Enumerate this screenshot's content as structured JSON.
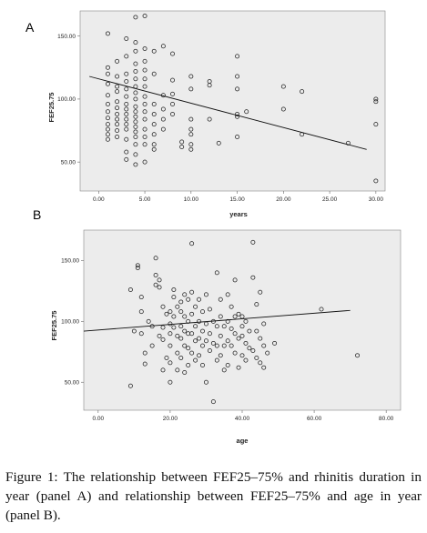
{
  "chart_data": [
    {
      "type": "scatter",
      "panel_label": "A",
      "xlabel": "years",
      "ylabel": "FEF25.75",
      "x_ticks": [
        "0.00",
        "5.00",
        "10.00",
        "15.00",
        "20.00",
        "25.00",
        "30.00"
      ],
      "y_ticks": [
        "50.00",
        "100.00",
        "150.00"
      ],
      "xlim": [
        -2,
        31
      ],
      "ylim": [
        27,
        170
      ],
      "background": "#ececec",
      "fit_line": [
        [
          -1,
          118
        ],
        [
          29,
          60
        ]
      ],
      "points": [
        [
          1,
          152
        ],
        [
          1,
          125
        ],
        [
          1,
          120
        ],
        [
          1,
          112
        ],
        [
          1,
          103
        ],
        [
          1,
          96
        ],
        [
          1,
          90
        ],
        [
          1,
          85
        ],
        [
          1,
          80
        ],
        [
          1,
          76
        ],
        [
          1,
          72
        ],
        [
          1,
          68
        ],
        [
          2,
          130
        ],
        [
          2,
          118
        ],
        [
          2,
          110
        ],
        [
          2,
          106
        ],
        [
          2,
          98
        ],
        [
          2,
          93
        ],
        [
          2,
          88
        ],
        [
          2,
          84
        ],
        [
          2,
          80
        ],
        [
          2,
          75
        ],
        [
          2,
          70
        ],
        [
          3,
          148
        ],
        [
          3,
          134
        ],
        [
          3,
          120
        ],
        [
          3,
          114
        ],
        [
          3,
          108
        ],
        [
          3,
          102
        ],
        [
          3,
          96
        ],
        [
          3,
          92
        ],
        [
          3,
          88
        ],
        [
          3,
          84
        ],
        [
          3,
          80
        ],
        [
          3,
          76
        ],
        [
          3,
          68
        ],
        [
          3,
          58
        ],
        [
          3,
          52
        ],
        [
          4,
          165
        ],
        [
          4,
          145
        ],
        [
          4,
          138
        ],
        [
          4,
          128
        ],
        [
          4,
          122
        ],
        [
          4,
          116
        ],
        [
          4,
          110
        ],
        [
          4,
          105
        ],
        [
          4,
          100
        ],
        [
          4,
          94
        ],
        [
          4,
          90
        ],
        [
          4,
          86
        ],
        [
          4,
          82
        ],
        [
          4,
          78
        ],
        [
          4,
          74
        ],
        [
          4,
          70
        ],
        [
          4,
          64
        ],
        [
          4,
          56
        ],
        [
          4,
          48
        ],
        [
          5,
          166
        ],
        [
          5,
          140
        ],
        [
          5,
          130
        ],
        [
          5,
          123
        ],
        [
          5,
          116
        ],
        [
          5,
          110
        ],
        [
          5,
          102
        ],
        [
          5,
          96
        ],
        [
          5,
          90
        ],
        [
          5,
          84
        ],
        [
          5,
          76
        ],
        [
          5,
          70
        ],
        [
          5,
          64
        ],
        [
          5,
          50
        ],
        [
          6,
          138
        ],
        [
          6,
          120
        ],
        [
          6,
          96
        ],
        [
          6,
          88
        ],
        [
          6,
          80
        ],
        [
          6,
          72
        ],
        [
          6,
          64
        ],
        [
          6,
          60
        ],
        [
          7,
          142
        ],
        [
          7,
          103
        ],
        [
          7,
          92
        ],
        [
          7,
          84
        ],
        [
          7,
          76
        ],
        [
          8,
          136
        ],
        [
          8,
          115
        ],
        [
          8,
          104
        ],
        [
          8,
          96
        ],
        [
          8,
          88
        ],
        [
          9,
          66
        ],
        [
          9,
          62
        ],
        [
          10,
          118
        ],
        [
          10,
          108
        ],
        [
          10,
          84
        ],
        [
          10,
          76
        ],
        [
          10,
          72
        ],
        [
          10,
          64
        ],
        [
          10,
          60
        ],
        [
          12,
          114
        ],
        [
          12,
          111
        ],
        [
          12,
          84
        ],
        [
          13,
          65
        ],
        [
          15,
          134
        ],
        [
          15,
          118
        ],
        [
          15,
          108
        ],
        [
          15,
          88
        ],
        [
          15,
          86
        ],
        [
          15,
          70
        ],
        [
          16,
          90
        ],
        [
          20,
          110
        ],
        [
          20,
          92
        ],
        [
          22,
          106
        ],
        [
          22,
          72
        ],
        [
          27,
          65
        ],
        [
          30,
          100
        ],
        [
          30,
          98
        ],
        [
          30,
          80
        ],
        [
          30,
          35
        ]
      ]
    },
    {
      "type": "scatter",
      "panel_label": "B",
      "xlabel": "age",
      "ylabel": "FEF25.75",
      "x_ticks": [
        "0.00",
        "20.00",
        "40.00",
        "60.00",
        "80.00"
      ],
      "y_ticks": [
        "50.00",
        "100.00",
        "150.00"
      ],
      "xlim": [
        -4,
        84
      ],
      "ylim": [
        27,
        175
      ],
      "background": "#ececec",
      "fit_line": [
        [
          -4,
          92
        ],
        [
          70,
          109
        ]
      ],
      "points": [
        [
          9,
          126
        ],
        [
          9,
          47
        ],
        [
          10,
          92
        ],
        [
          11,
          146
        ],
        [
          11,
          144
        ],
        [
          12,
          120
        ],
        [
          12,
          108
        ],
        [
          12,
          90
        ],
        [
          13,
          74
        ],
        [
          13,
          65
        ],
        [
          14,
          100
        ],
        [
          15,
          96
        ],
        [
          15,
          80
        ],
        [
          16,
          152
        ],
        [
          16,
          138
        ],
        [
          16,
          130
        ],
        [
          17,
          134
        ],
        [
          17,
          128
        ],
        [
          17,
          88
        ],
        [
          18,
          112
        ],
        [
          18,
          95
        ],
        [
          18,
          85
        ],
        [
          18,
          60
        ],
        [
          19,
          106
        ],
        [
          19,
          70
        ],
        [
          20,
          108
        ],
        [
          20,
          98
        ],
        [
          20,
          90
        ],
        [
          20,
          80
        ],
        [
          20,
          66
        ],
        [
          20,
          50
        ],
        [
          21,
          126
        ],
        [
          21,
          120
        ],
        [
          21,
          104
        ],
        [
          21,
          95
        ],
        [
          22,
          112
        ],
        [
          22,
          88
        ],
        [
          22,
          74
        ],
        [
          22,
          60
        ],
        [
          23,
          116
        ],
        [
          23,
          108
        ],
        [
          23,
          96
        ],
        [
          23,
          86
        ],
        [
          23,
          70
        ],
        [
          24,
          122
        ],
        [
          24,
          104
        ],
        [
          24,
          92
        ],
        [
          24,
          80
        ],
        [
          24,
          58
        ],
        [
          25,
          118
        ],
        [
          25,
          100
        ],
        [
          25,
          90
        ],
        [
          25,
          78
        ],
        [
          25,
          64
        ],
        [
          26,
          164
        ],
        [
          26,
          124
        ],
        [
          26,
          106
        ],
        [
          26,
          90
        ],
        [
          26,
          74
        ],
        [
          27,
          112
        ],
        [
          27,
          96
        ],
        [
          27,
          84
        ],
        [
          27,
          68
        ],
        [
          28,
          118
        ],
        [
          28,
          100
        ],
        [
          28,
          86
        ],
        [
          28,
          72
        ],
        [
          29,
          108
        ],
        [
          29,
          92
        ],
        [
          29,
          80
        ],
        [
          29,
          64
        ],
        [
          30,
          122
        ],
        [
          30,
          98
        ],
        [
          30,
          84
        ],
        [
          30,
          50
        ],
        [
          31,
          110
        ],
        [
          31,
          90
        ],
        [
          31,
          76
        ],
        [
          32,
          100
        ],
        [
          32,
          82
        ],
        [
          32,
          34
        ],
        [
          33,
          140
        ],
        [
          33,
          96
        ],
        [
          33,
          80
        ],
        [
          33,
          68
        ],
        [
          34,
          118
        ],
        [
          34,
          104
        ],
        [
          34,
          88
        ],
        [
          34,
          72
        ],
        [
          35,
          96
        ],
        [
          35,
          80
        ],
        [
          35,
          60
        ],
        [
          36,
          122
        ],
        [
          36,
          100
        ],
        [
          36,
          84
        ],
        [
          36,
          64
        ],
        [
          37,
          112
        ],
        [
          37,
          94
        ],
        [
          37,
          80
        ],
        [
          38,
          134
        ],
        [
          38,
          104
        ],
        [
          38,
          90
        ],
        [
          38,
          74
        ],
        [
          39,
          106
        ],
        [
          39,
          86
        ],
        [
          39,
          62
        ],
        [
          40,
          104
        ],
        [
          40,
          96
        ],
        [
          40,
          88
        ],
        [
          40,
          72
        ],
        [
          41,
          100
        ],
        [
          41,
          82
        ],
        [
          41,
          68
        ],
        [
          42,
          92
        ],
        [
          42,
          78
        ],
        [
          43,
          165
        ],
        [
          43,
          136
        ],
        [
          43,
          76
        ],
        [
          44,
          114
        ],
        [
          44,
          92
        ],
        [
          44,
          70
        ],
        [
          45,
          124
        ],
        [
          45,
          86
        ],
        [
          45,
          66
        ],
        [
          46,
          98
        ],
        [
          46,
          80
        ],
        [
          46,
          62
        ],
        [
          47,
          74
        ],
        [
          49,
          82
        ],
        [
          62,
          110
        ],
        [
          72,
          72
        ]
      ]
    }
  ],
  "caption": {
    "label": "Figure 1:",
    "text": "The relationship between FEF25–75% and rhinitis duration in year (panel A) and relationship between FEF25–75% and age in year (panel B)."
  }
}
